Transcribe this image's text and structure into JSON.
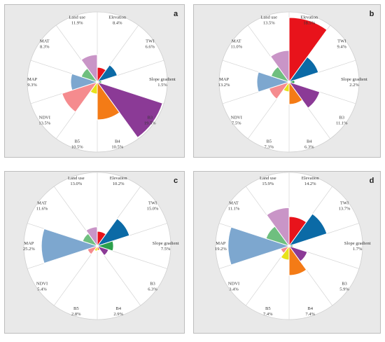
{
  "chart_data": [
    {
      "type": "polar-area",
      "panel_label": "a",
      "categories": [
        "Elevation",
        "TWI",
        "Slope gradient",
        "B3",
        "B4",
        "B5",
        "NDVI",
        "MAP",
        "MAT",
        "Land use"
      ],
      "value_labels": [
        "8.4%",
        "6.6%",
        "1.5%",
        "19.5%",
        "10.5%",
        "10.5%",
        "13.5%",
        "9.3%",
        "8.3%",
        "11.9%"
      ],
      "values": [
        8.4,
        6.6,
        1.5,
        19.5,
        10.5,
        10.5,
        13.5,
        9.3,
        8.3,
        11.9
      ],
      "radial_fraction": [
        0.21,
        0.3,
        0.06,
        0.98,
        0.54,
        0.17,
        0.53,
        0.38,
        0.24,
        0.39
      ]
    },
    {
      "type": "polar-area",
      "panel_label": "b",
      "categories": [
        "Elevation",
        "TWI",
        "Slope gradient",
        "B3",
        "B4",
        "B5",
        "NDVI",
        "MAP",
        "MAT",
        "Land use"
      ],
      "value_labels": [
        "18.5%",
        "9.4%",
        "2.2%",
        "11.1%",
        "6.3%",
        "7.3%",
        "7.5%",
        "13.2%",
        "11.0%",
        "13.5%"
      ],
      "values": [
        18.5,
        9.4,
        2.2,
        11.1,
        6.3,
        7.3,
        7.5,
        13.2,
        11.0,
        13.5
      ],
      "radial_fraction": [
        0.92,
        0.44,
        0.08,
        0.46,
        0.32,
        0.14,
        0.3,
        0.46,
        0.27,
        0.45
      ]
    },
    {
      "type": "polar-area",
      "panel_label": "c",
      "categories": [
        "Elevation",
        "TWI",
        "Slope gradient",
        "B3",
        "B4",
        "B5",
        "NDVI",
        "MAP",
        "MAT",
        "Land use"
      ],
      "value_labels": [
        "10.2%",
        "15.0%",
        "7.5%",
        "6.3%",
        "2.9%",
        "2.8%",
        "5.4%",
        "25.2%",
        "11.6%",
        "13.0%"
      ],
      "values": [
        10.2,
        15.0,
        7.5,
        6.3,
        2.9,
        2.8,
        5.4,
        25.2,
        11.6,
        13.0
      ],
      "radial_fraction": [
        0.2,
        0.46,
        0.22,
        0.16,
        0.06,
        0.07,
        0.14,
        0.76,
        0.21,
        0.26
      ]
    },
    {
      "type": "polar-area",
      "panel_label": "d",
      "categories": [
        "Elevation",
        "TWI",
        "Slope gradient",
        "B3",
        "B4",
        "B5",
        "NDVI",
        "MAP",
        "MAT",
        "Land use"
      ],
      "value_labels": [
        "14.2%",
        "13.7%",
        "1.7%",
        "5.9%",
        "7.4%",
        "7.4%",
        "3.4%",
        "19.2%",
        "11.1%",
        "15.9%"
      ],
      "values": [
        14.2,
        13.7,
        1.7,
        5.9,
        7.4,
        7.4,
        3.4,
        19.2,
        11.1,
        15.9
      ],
      "radial_fraction": [
        0.4,
        0.54,
        0.05,
        0.26,
        0.4,
        0.19,
        0.12,
        0.83,
        0.33,
        0.52
      ]
    }
  ],
  "colors": [
    "#e8131b",
    "#0b6aa6",
    "#2ca04c",
    "#8b3a96",
    "#f47b16",
    "#e8e21a",
    "#f58b8e",
    "#7da7cf",
    "#6fbf7f",
    "#c995c7"
  ]
}
